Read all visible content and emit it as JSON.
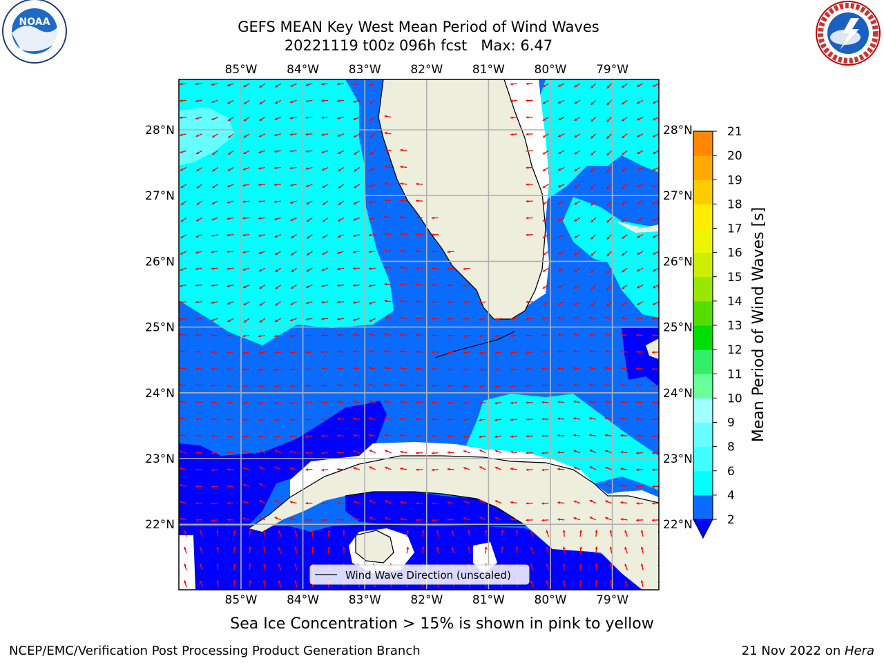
{
  "title_line1": "GEFS MEAN Key West Mean Period of Wind Waves",
  "title_line2": "20221119 t00z 096h fcst   Max: 6.47",
  "lon_labels": [
    "85°W",
    "84°W",
    "83°W",
    "82°W",
    "81°W",
    "80°W",
    "79°W"
  ],
  "lat_labels": [
    "28°N",
    "27°N",
    "26°N",
    "25°N",
    "24°N",
    "23°N",
    "22°N"
  ],
  "legend_label": "Wind Wave Direction (unscaled)",
  "colorbar": {
    "label": "Mean Period of Wind Waves [s]",
    "ticks": [
      "2",
      "4",
      "6",
      "8",
      "9",
      "10",
      "11",
      "12",
      "13",
      "14",
      "15",
      "16",
      "17",
      "18",
      "19",
      "20",
      "21"
    ],
    "colors": [
      "#0050ff",
      "#00c8ff",
      "#00ffff",
      "#40ffff",
      "#80ffff",
      "#a8ffe0",
      "#4cff80",
      "#00ee00",
      "#30d000",
      "#80e000",
      "#c8f000",
      "#e8f800",
      "#ffff00",
      "#ffd000",
      "#ffa000",
      "#ff7800",
      "#ff4800",
      "#ff2000",
      "#ff0000"
    ],
    "under_color": "#0000ff"
  },
  "colors": {
    "land": "#eeeedd",
    "arrow": "#ff0000",
    "grid": "#b0b0b0",
    "c_deep": "#0000ff",
    "c_blue": "#0a6cff",
    "c_cyan": "#00ffff",
    "c_lightcyan": "#66ffff"
  },
  "sea_ice_note": "Sea Ice Concentration > 15% is shown in pink to yellow",
  "footer_left": "NCEP/EMC/Verification Post Processing Product Generation Branch",
  "footer_date": "21 Nov 2022 on ",
  "footer_machine": "Hera",
  "logos": {
    "left_text": "NOAA",
    "right_text": "NATIONAL WEATHER SERVICE"
  }
}
